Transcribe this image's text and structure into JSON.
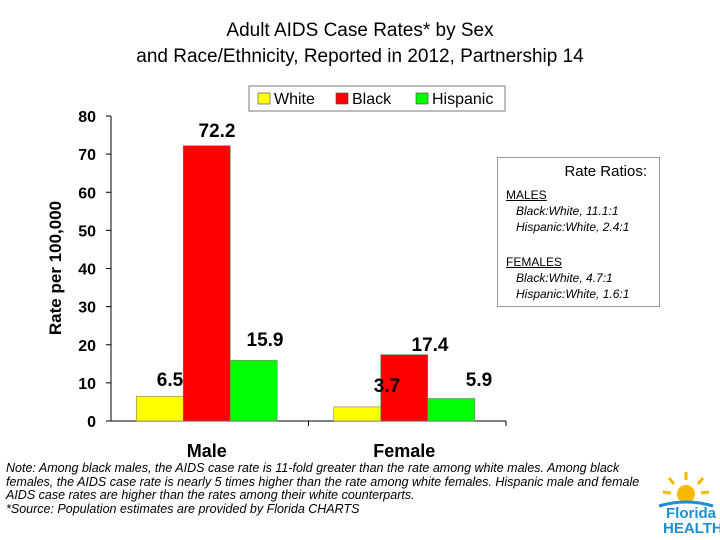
{
  "title_lines": [
    "Adult AIDS Case Rates* by Sex",
    "and Race/Ethnicity, Reported in 2012, Partnership 14"
  ],
  "chart_data": {
    "type": "bar",
    "title": "Adult AIDS Case Rates* by Sex and Race/Ethnicity, Reported in 2012, Partnership 14",
    "categories": [
      "Male",
      "Female"
    ],
    "series": [
      {
        "name": "White",
        "values": [
          6.5,
          3.7
        ],
        "color": "#ffff00"
      },
      {
        "name": "Black",
        "values": [
          72.2,
          17.4
        ],
        "color": "#ff0000"
      },
      {
        "name": "Hispanic",
        "values": [
          15.9,
          5.9
        ],
        "color": "#00ff00"
      }
    ],
    "ylabel": "Rate per 100,000",
    "xlabel": "",
    "ylim": [
      0,
      80
    ],
    "yticks": [
      0,
      10,
      20,
      30,
      40,
      50,
      60,
      70,
      80
    ],
    "grid": false,
    "legend": "top-right"
  },
  "ratios": {
    "title": "Rate Ratios:",
    "males_label": "MALES",
    "males": [
      "Black:White, 11.1:1",
      "Hispanic:White, 2.4:1"
    ],
    "females_label": "FEMALES",
    "females": [
      "Black:White, 4.7:1",
      "Hispanic:White, 1.6:1"
    ]
  },
  "note": [
    "Note: Among black males, the AIDS case rate is 11-fold greater than the rate among white males. Among black females, the AIDS case rate is nearly 5 times higher than the rate among white females.  Hispanic male and female AIDS case rates are higher than the rates among their white counterparts.",
    "*Source: Population estimates are provided by Florida CHARTS"
  ],
  "logo": {
    "line1": "Florida",
    "line2": "HEALTH"
  },
  "colors": {
    "axis": "#000000",
    "white_bar": "#ffff00",
    "black_bar": "#ff0000",
    "hispanic_bar": "#00ff00"
  }
}
